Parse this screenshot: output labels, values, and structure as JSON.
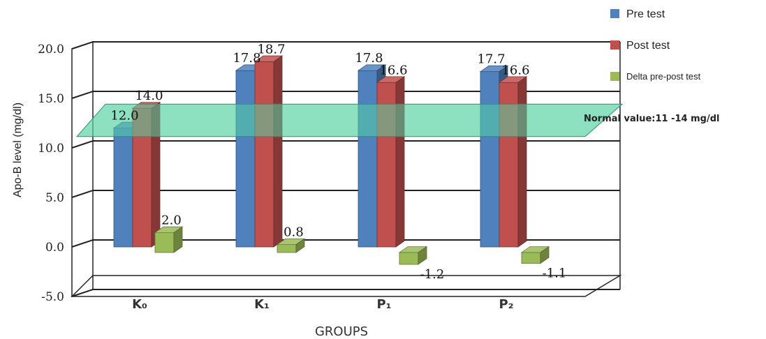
{
  "chart_data": {
    "type": "bar",
    "ylabel": "Apo-B level (mg/dl)",
    "xlabel": "GROUPS",
    "ylim": [
      -5,
      20
    ],
    "yticks": [
      "-5.0",
      "0.0",
      "5.0",
      "10.0",
      "15.0",
      "20.0"
    ],
    "categories": [
      "K₀",
      "K₁",
      "P₁",
      "P₂"
    ],
    "series": [
      {
        "name": "Pre test",
        "values": [
          12.0,
          17.8,
          17.8,
          17.7
        ],
        "labels": [
          "12.0",
          "17.8",
          "17.8",
          "17.7"
        ]
      },
      {
        "name": "Post test",
        "values": [
          14.0,
          18.7,
          16.6,
          16.6
        ],
        "labels": [
          "14.0",
          "18.7",
          "16.6",
          "16.6"
        ]
      },
      {
        "name": "Delta pre-post test",
        "values": [
          2.0,
          0.8,
          -1.2,
          -1.1
        ],
        "labels": [
          "2.0",
          "0.8",
          "-1.2",
          "-1.1"
        ]
      }
    ],
    "normal_band": {
      "label": "Normal value:11 -14 mg/dl",
      "low": 11,
      "high": 14
    },
    "legend_position": "top-right",
    "grid": true,
    "colors": [
      "#4f81bd",
      "#c0504d",
      "#9bbb59"
    ]
  }
}
